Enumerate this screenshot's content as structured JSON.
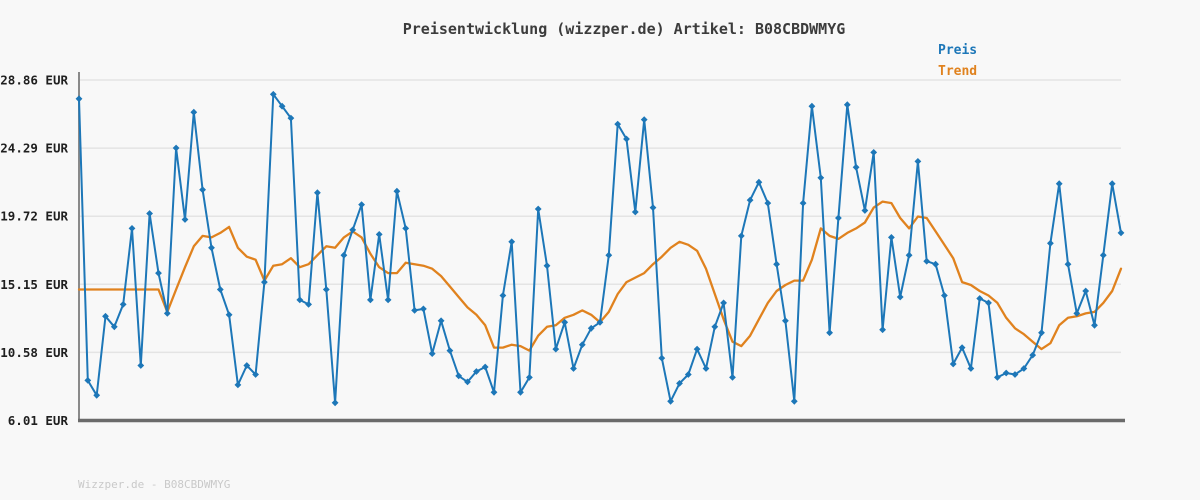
{
  "title": "Preisentwicklung (wizzper.de) Artikel: B08CBDWMYG",
  "legend": {
    "price_label": "Preis",
    "trend_label": "Trend"
  },
  "footer": "Wizzper.de - B08CBDWMYG",
  "colors": {
    "background": "#f8f8f8",
    "price": "#1d77b8",
    "trend": "#e0821e",
    "grid": "#e4e4e4",
    "axis_left": "#8a8a8a",
    "axis_bottom": "#6b6b6b",
    "title_text": "#3c3c3c",
    "tick_text": "#1f1f1f",
    "footer_text": "#c9c9c9"
  },
  "chart_data": {
    "type": "line",
    "title": "Preisentwicklung (wizzper.de) Artikel: B08CBDWMYG",
    "xlabel": "",
    "ylabel": "EUR",
    "x_axis_labels": "none (time axis unlabeled)",
    "grid": "horizontal only",
    "legend_position": "top-right",
    "ylim": [
      6.01,
      28.86
    ],
    "ytick_values": [
      28.86,
      24.29,
      19.72,
      15.15,
      10.58,
      6.01
    ],
    "ytick_labels": [
      "28.86 EUR",
      "24.29 EUR",
      "19.72 EUR",
      "15.15 EUR",
      "10.58 EUR",
      "6.01 EUR"
    ],
    "series": [
      {
        "name": "Preis",
        "color": "#1d77b8",
        "marker": "diamond",
        "values": [
          27.6,
          8.7,
          7.7,
          13.0,
          12.3,
          13.8,
          18.9,
          9.7,
          19.9,
          15.9,
          13.2,
          24.3,
          19.5,
          26.7,
          21.5,
          17.6,
          14.8,
          13.1,
          8.4,
          9.7,
          9.1,
          15.3,
          27.9,
          27.1,
          26.3,
          14.1,
          13.8,
          21.3,
          14.8,
          7.2,
          17.1,
          18.8,
          20.5,
          14.1,
          18.5,
          14.1,
          21.4,
          18.9,
          13.4,
          13.5,
          10.5,
          12.7,
          10.7,
          9.0,
          8.6,
          9.3,
          9.6,
          7.9,
          14.4,
          18.0,
          7.9,
          8.9,
          20.2,
          16.4,
          10.8,
          12.6,
          9.5,
          11.1,
          12.2,
          12.6,
          17.1,
          25.9,
          24.9,
          20.0,
          26.2,
          20.3,
          10.2,
          7.3,
          8.5,
          9.1,
          10.8,
          9.5,
          12.3,
          13.9,
          8.9,
          18.4,
          20.8,
          22.0,
          20.6,
          16.5,
          12.7,
          7.3,
          20.6,
          27.1,
          22.3,
          11.9,
          19.6,
          27.2,
          23.0,
          20.1,
          24.0,
          12.1,
          18.3,
          14.3,
          17.1,
          23.4,
          16.7,
          16.5,
          14.4,
          9.8,
          10.9,
          9.5,
          14.2,
          13.9,
          8.9,
          9.2,
          9.1,
          9.5,
          10.4,
          11.9,
          17.9,
          21.9,
          16.5,
          13.2,
          14.7,
          12.4,
          17.1,
          21.9,
          18.6
        ]
      },
      {
        "name": "Trend",
        "color": "#e0821e",
        "marker": "none",
        "values": [
          14.8,
          14.8,
          14.8,
          14.8,
          14.8,
          14.8,
          14.8,
          14.8,
          14.8,
          14.8,
          13.3,
          14.8,
          16.3,
          17.7,
          18.4,
          18.3,
          18.6,
          19.0,
          17.6,
          17.0,
          16.8,
          15.4,
          16.4,
          16.5,
          16.9,
          16.3,
          16.5,
          17.1,
          17.7,
          17.6,
          18.3,
          18.7,
          18.3,
          17.2,
          16.3,
          15.9,
          15.9,
          16.6,
          16.5,
          16.4,
          16.2,
          15.7,
          15.0,
          14.3,
          13.6,
          13.1,
          12.4,
          10.9,
          10.9,
          11.1,
          11.0,
          10.7,
          11.7,
          12.3,
          12.4,
          12.9,
          13.1,
          13.4,
          13.1,
          12.6,
          13.3,
          14.5,
          15.3,
          15.6,
          15.9,
          16.5,
          17.0,
          17.6,
          18.0,
          17.8,
          17.4,
          16.2,
          14.5,
          12.8,
          11.3,
          11.0,
          11.7,
          12.8,
          13.9,
          14.7,
          15.1,
          15.4,
          15.4,
          16.8,
          18.9,
          18.4,
          18.2,
          18.6,
          18.9,
          19.3,
          20.3,
          20.7,
          20.6,
          19.6,
          18.9,
          19.7,
          19.6,
          18.7,
          17.8,
          16.9,
          15.3,
          15.1,
          14.7,
          14.4,
          13.9,
          12.9,
          12.2,
          11.8,
          11.3,
          10.8,
          11.2,
          12.4,
          12.9,
          13.0,
          13.2,
          13.3,
          13.9,
          14.7,
          16.2
        ]
      }
    ]
  }
}
